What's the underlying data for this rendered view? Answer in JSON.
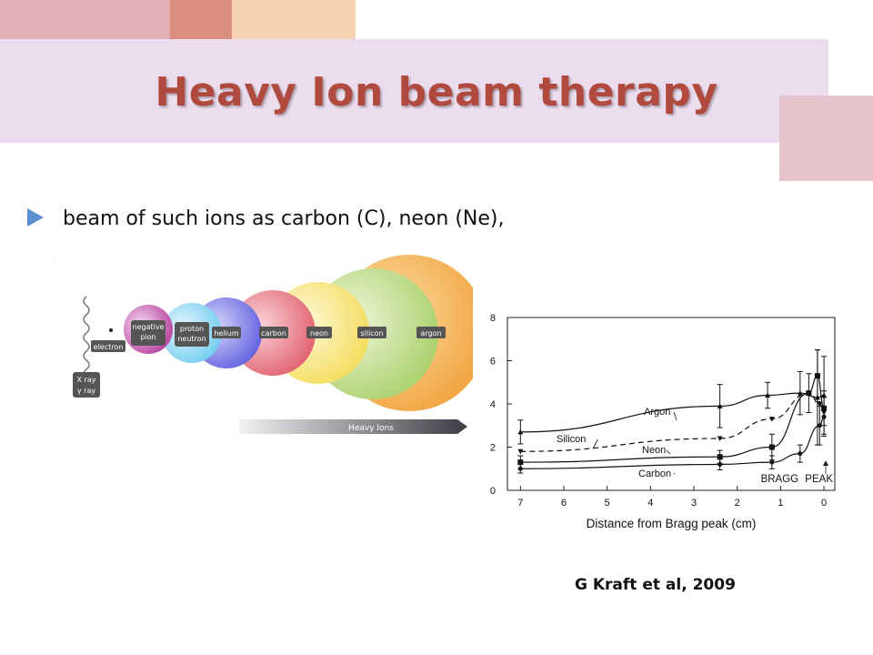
{
  "slide": {
    "title": "Heavy Ion beam therapy",
    "bullet": "beam of such ions as carbon (C), neon (Ne),",
    "credit": "G Kraft et al, 2009"
  },
  "colors": {
    "title": "#b04a3e",
    "bullet_arrow": "#5b8fd1",
    "banner": "#ebdcee"
  },
  "ion_diagram": {
    "particles": [
      "electron",
      "negative pion",
      "proton neutron",
      "helium",
      "carbon",
      "neon",
      "silicon",
      "argon"
    ],
    "xray_label": [
      "X ray",
      "γ ray"
    ],
    "arrow_label": "Heavy Ions"
  },
  "chart_data": {
    "type": "line",
    "xlabel": "Distance from Bragg peak (cm)",
    "ylabel": "",
    "xlim": [
      7.3,
      -0.25
    ],
    "ylim": [
      0,
      8
    ],
    "x_ticks": [
      7,
      6,
      5,
      4,
      3,
      2,
      1,
      0
    ],
    "y_ticks": [
      0,
      2,
      4,
      6,
      8
    ],
    "peak_annotation": "BRAGG PEAK",
    "series": [
      {
        "name": "Argon",
        "style": "solid",
        "marker": "triangle",
        "points": [
          [
            7,
            2.7
          ],
          [
            2.4,
            3.9
          ],
          [
            1.3,
            4.4
          ],
          [
            0.55,
            4.5
          ],
          [
            0.15,
            4.3
          ],
          [
            0,
            4.4
          ]
        ],
        "errors": [
          0.55,
          1.0,
          0.6,
          1.0,
          2.2,
          1.8
        ]
      },
      {
        "name": "Silicon",
        "style": "dashed",
        "marker": "inverted-triangle",
        "points": [
          [
            7,
            1.8
          ],
          [
            2.4,
            2.4
          ],
          [
            1.2,
            3.3
          ],
          [
            0.35,
            4.5
          ],
          [
            0.1,
            4.0
          ],
          [
            0,
            3.6
          ]
        ],
        "errors": [
          0,
          0,
          0,
          0,
          0,
          0
        ]
      },
      {
        "name": "Neon",
        "style": "solid",
        "marker": "square",
        "points": [
          [
            7,
            1.3
          ],
          [
            2.4,
            1.55
          ],
          [
            1.2,
            2.0
          ],
          [
            0.35,
            4.5
          ],
          [
            0.15,
            5.3
          ],
          [
            0,
            3.8
          ]
        ],
        "errors": [
          0.3,
          0.3,
          0.6,
          0.9,
          1.2,
          0.8
        ]
      },
      {
        "name": "Carbon",
        "style": "solid",
        "marker": "circle",
        "points": [
          [
            7,
            1.0
          ],
          [
            2.4,
            1.2
          ],
          [
            1.2,
            1.3
          ],
          [
            0.55,
            1.7
          ],
          [
            0.1,
            3.0
          ],
          [
            0,
            3.4
          ]
        ],
        "errors": [
          0.2,
          0.25,
          0.3,
          0.4,
          0.9,
          0.9
        ]
      }
    ]
  }
}
